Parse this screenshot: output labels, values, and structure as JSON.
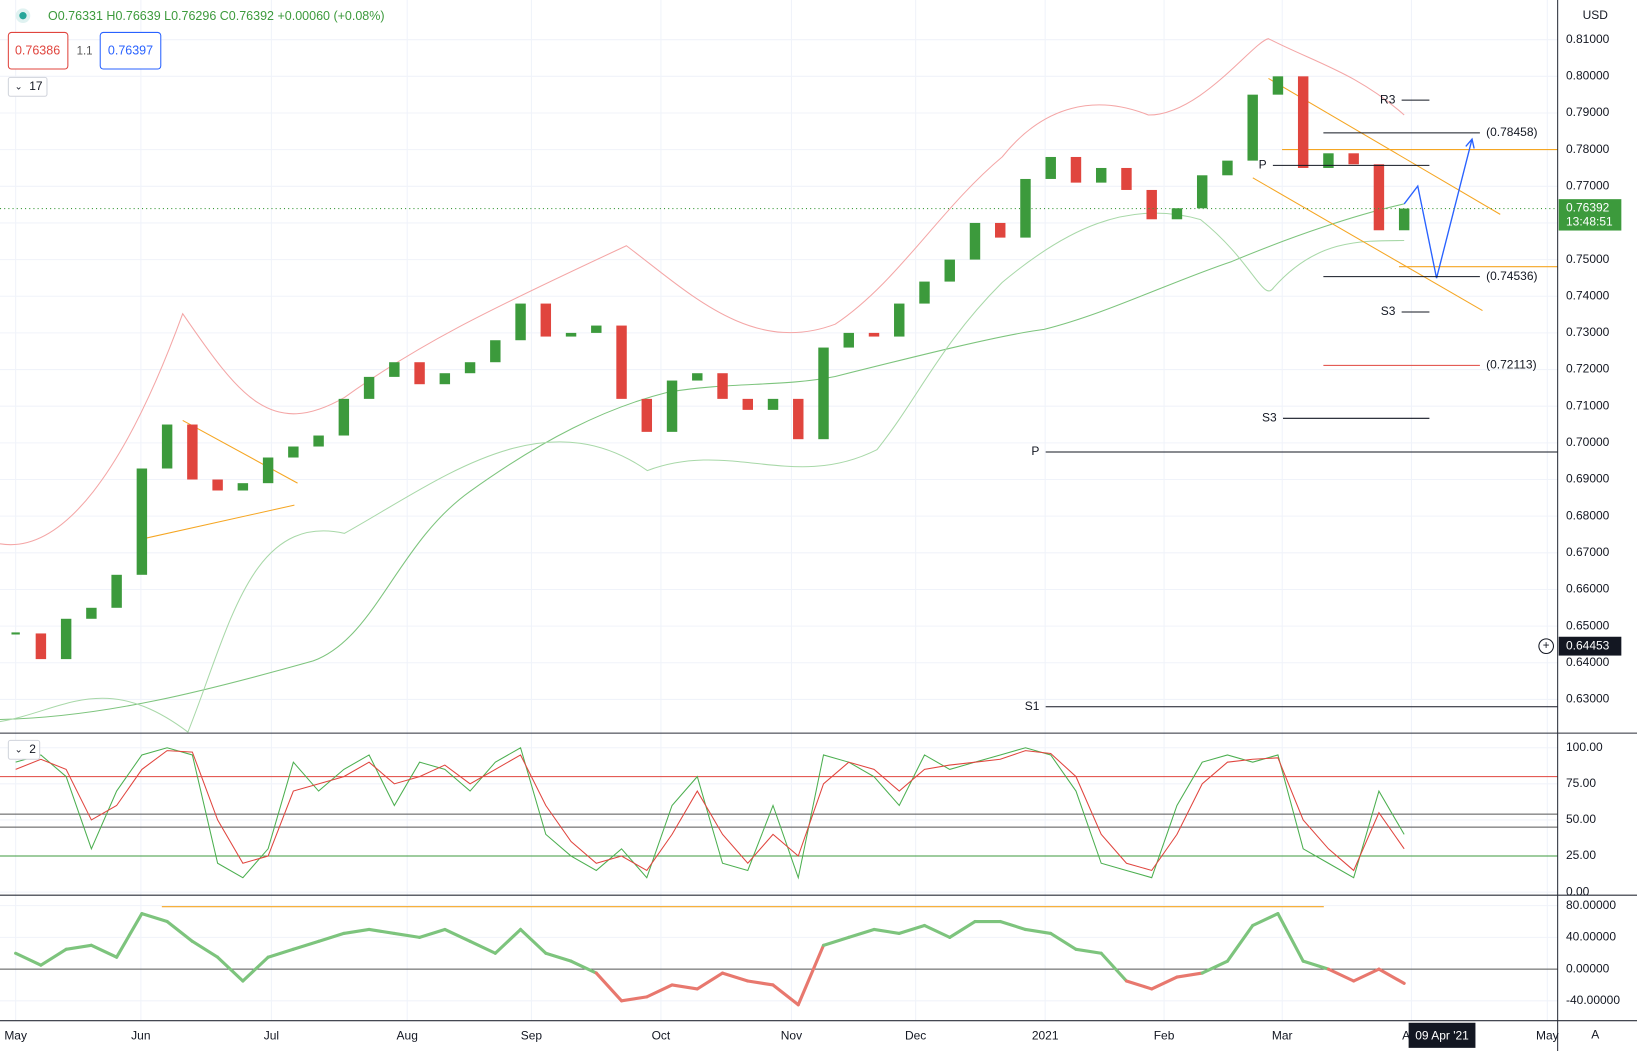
{
  "header": {
    "ohlc": "O0.76331 H0.76639 L0.76296 C0.76392 +0.00060 (+0.08%)",
    "sell": "0.76386",
    "spread": "1.1",
    "buy": "0.76397",
    "pane1_label": "17",
    "pane2_label": "2",
    "currency": "USD",
    "auto": "A"
  },
  "chart_data": [
    {
      "type": "candlestick",
      "up_color": "#3c9a3c",
      "down_color": "#e0453e",
      "xlim": [
        -0.62,
        61.08
      ],
      "xticks": [
        {
          "value": 0,
          "label": "May"
        },
        {
          "value": 4.96,
          "label": "Jun"
        },
        {
          "value": 10.13,
          "label": "Jul"
        },
        {
          "value": 15.51,
          "label": "Aug"
        },
        {
          "value": 20.43,
          "label": "Sep"
        },
        {
          "value": 25.56,
          "label": "Oct"
        },
        {
          "value": 30.73,
          "label": "Nov"
        },
        {
          "value": 35.65,
          "label": "Dec"
        },
        {
          "value": 40.78,
          "label": "2021"
        },
        {
          "value": 45.49,
          "label": "Feb"
        },
        {
          "value": 50.17,
          "label": "Mar"
        },
        {
          "value": 55.29,
          "label": "Apr"
        },
        {
          "value": 60.67,
          "label": "May"
        }
      ],
      "ylim": [
        0.6211,
        0.8194
      ],
      "yticks": [
        {
          "value": 0.63,
          "label": "0.63000"
        },
        {
          "value": 0.64,
          "label": "0.64000"
        },
        {
          "value": 0.65,
          "label": "0.65000"
        },
        {
          "value": 0.66,
          "label": "0.66000"
        },
        {
          "value": 0.67,
          "label": "0.67000"
        },
        {
          "value": 0.68,
          "label": "0.68000"
        },
        {
          "value": 0.69,
          "label": "0.69000"
        },
        {
          "value": 0.7,
          "label": "0.70000"
        },
        {
          "value": 0.71,
          "label": "0.71000"
        },
        {
          "value": 0.72,
          "label": "0.72000"
        },
        {
          "value": 0.73,
          "label": "0.73000"
        },
        {
          "value": 0.74,
          "label": "0.74000"
        },
        {
          "value": 0.75,
          "label": "0.75000"
        },
        {
          "value": 0.76,
          "label": "0.76000"
        },
        {
          "value": 0.77,
          "label": "0.77000"
        },
        {
          "value": 0.78,
          "label": "0.78000"
        },
        {
          "value": 0.79,
          "label": "0.79000"
        },
        {
          "value": 0.8,
          "label": "0.80000"
        },
        {
          "value": 0.81,
          "label": "0.81000"
        }
      ],
      "grid": true,
      "closes": [
        0.648,
        0.641,
        0.652,
        0.655,
        0.664,
        0.693,
        0.705,
        0.69,
        0.687,
        0.689,
        0.696,
        0.699,
        0.702,
        0.712,
        0.718,
        0.722,
        0.716,
        0.719,
        0.722,
        0.728,
        0.738,
        0.729,
        0.73,
        0.732,
        0.712,
        0.703,
        0.717,
        0.719,
        0.712,
        0.709,
        0.712,
        0.701,
        0.726,
        0.73,
        0.729,
        0.738,
        0.744,
        0.75,
        0.76,
        0.756,
        0.772,
        0.778,
        0.771,
        0.775,
        0.769,
        0.761,
        0.764,
        0.773,
        0.777,
        0.795,
        0.8,
        0.775,
        0.779,
        0.776,
        0.758,
        0.76392
      ],
      "levels": [
        {
          "label": "R3",
          "value": 0.7935,
          "x1": 54.9,
          "x2": 56,
          "side": "left",
          "color": "#131722"
        },
        {
          "label": "(0.78458)",
          "value": 0.78458,
          "x1": 51.8,
          "x2": 58,
          "side": "right",
          "color": "#131722"
        },
        {
          "label": "P",
          "value": 0.7757,
          "x1": 49.8,
          "x2": 56,
          "side": "left",
          "color": "#131722"
        },
        {
          "label": "(0.74536)",
          "value": 0.74536,
          "x1": 51.8,
          "x2": 58,
          "side": "right",
          "color": "#131722"
        },
        {
          "label": "S3",
          "value": 0.7357,
          "x1": 54.9,
          "x2": 56,
          "side": "left",
          "color": "#131722"
        },
        {
          "label": "(0.72113)",
          "value": 0.72113,
          "x1": 51.8,
          "x2": 58,
          "side": "right",
          "color": "#e0453e"
        },
        {
          "label": "S3",
          "value": 0.7067,
          "x1": 50.2,
          "x2": 56,
          "side": "left",
          "color": "#131722"
        },
        {
          "label": "P",
          "value": 0.6975,
          "x1": 40.8,
          "x2": 61.08,
          "side": "left",
          "color": "#131722"
        },
        {
          "label": "S1",
          "value": 0.628,
          "x1": 40.8,
          "x2": 61.08,
          "side": "left",
          "color": "#131722"
        }
      ],
      "last_price": {
        "value": 0.76392,
        "label": "0.76392",
        "time": "13:48:51",
        "color": "#3c9a3c"
      },
      "cursor": {
        "value": 0.64453,
        "label": "0.64453",
        "date": "09 Apr '21",
        "date_x": 56.5
      }
    },
    {
      "type": "line",
      "ylim": [
        -1.4,
        108.7
      ],
      "yticks": [
        {
          "value": 0,
          "label": "0.00"
        },
        {
          "value": 25,
          "label": "25.00"
        },
        {
          "value": 50,
          "label": "50.00"
        },
        {
          "value": 75,
          "label": "75.00"
        },
        {
          "value": 100,
          "label": "100.00"
        }
      ],
      "levels": [
        {
          "value": 80,
          "color": "#e0453e"
        },
        {
          "value": 54,
          "color": "#555"
        },
        {
          "value": 45,
          "color": "#555"
        },
        {
          "value": 25,
          "color": "#3c9a3c"
        }
      ],
      "series": [
        {
          "color": "#4caf50",
          "values": [
            90,
            95,
            80,
            30,
            70,
            95,
            100,
            95,
            20,
            10,
            30,
            90,
            70,
            85,
            95,
            60,
            90,
            85,
            70,
            90,
            100,
            40,
            25,
            15,
            30,
            10,
            60,
            80,
            20,
            15,
            60,
            10,
            95,
            90,
            80,
            60,
            95,
            85,
            90,
            95,
            100,
            95,
            70,
            20,
            15,
            10,
            60,
            90,
            95,
            90,
            95,
            30,
            20,
            10,
            70,
            40
          ]
        },
        {
          "color": "#e0453e",
          "values": [
            85,
            92,
            85,
            50,
            60,
            85,
            98,
            97,
            50,
            20,
            25,
            70,
            75,
            80,
            90,
            75,
            80,
            88,
            75,
            85,
            95,
            60,
            35,
            20,
            25,
            15,
            40,
            70,
            40,
            20,
            40,
            25,
            75,
            90,
            85,
            70,
            85,
            88,
            90,
            92,
            98,
            96,
            80,
            40,
            20,
            15,
            40,
            75,
            90,
            92,
            93,
            50,
            30,
            15,
            55,
            30
          ]
        }
      ]
    },
    {
      "type": "momentum",
      "ylim": [
        -63.7,
        91.9
      ],
      "yticks": [
        {
          "value": -40,
          "label": "-40.00000"
        },
        {
          "value": 0,
          "label": "0.00000"
        },
        {
          "value": 40,
          "label": "40.00000"
        },
        {
          "value": 80,
          "label": "80.00000"
        }
      ],
      "up_color": "#7dc47d",
      "down_color": "#e8786e",
      "values": [
        20,
        5,
        25,
        30,
        15,
        70,
        60,
        35,
        15,
        -15,
        15,
        25,
        35,
        45,
        50,
        45,
        40,
        50,
        35,
        20,
        50,
        20,
        10,
        -5,
        -40,
        -35,
        -20,
        -25,
        -5,
        -15,
        -20,
        -45,
        30,
        40,
        50,
        45,
        55,
        40,
        60,
        60,
        50,
        45,
        25,
        20,
        -15,
        -25,
        -10,
        -5,
        10,
        55,
        70,
        10,
        0,
        -15,
        0,
        -18
      ]
    }
  ]
}
